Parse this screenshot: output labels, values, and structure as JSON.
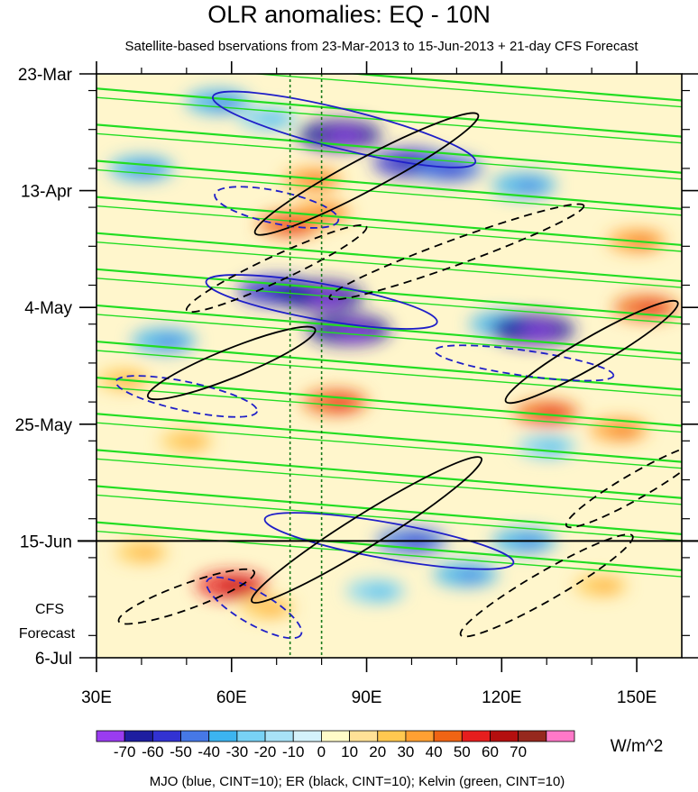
{
  "chart_data": {
    "type": "heatmap",
    "title": "OLR anomalies: EQ - 10N",
    "subtitle": "Satellite-based bservations from 23-Mar-2013 to 15-Jun-2013 + 21-day CFS Forecast",
    "x_axis": {
      "label": "",
      "range": [
        30,
        160
      ],
      "ticks": [
        {
          "value": 30,
          "label": "30E"
        },
        {
          "value": 60,
          "label": "60E"
        },
        {
          "value": 90,
          "label": "90E"
        },
        {
          "value": 120,
          "label": "120E"
        },
        {
          "value": 150,
          "label": "150E"
        }
      ]
    },
    "y_axis": {
      "label": "",
      "range_days": [
        0,
        105
      ],
      "ticks": [
        {
          "day": 0,
          "label": "23-Mar"
        },
        {
          "day": 21,
          "label": "13-Apr"
        },
        {
          "day": 42,
          "label": "4-May"
        },
        {
          "day": 63,
          "label": "25-May"
        },
        {
          "day": 84,
          "label": "15-Jun"
        },
        {
          "day": 105,
          "label": "6-Jul"
        }
      ]
    },
    "forecast_start_day": 84,
    "forecast_label_line1": "CFS",
    "forecast_label_line2": "Forecast",
    "reference_longitudes": [
      73,
      80
    ],
    "colorbar": {
      "units": "W/m^2",
      "levels": [
        -70,
        -60,
        -50,
        -40,
        -30,
        -20,
        -10,
        0,
        10,
        20,
        30,
        40,
        50,
        60,
        70
      ],
      "level_labels": [
        "-70",
        "-60",
        "-50",
        "-40",
        "-30",
        "-20",
        "-10",
        "0",
        "10",
        "20",
        "30",
        "40",
        "50",
        "60",
        "70"
      ],
      "colors": [
        "#9a3cf0",
        "#1e1ea0",
        "#3232d2",
        "#4678e6",
        "#3cb4f0",
        "#78d2f5",
        "#a8e2f7",
        "#d4f2fb",
        "#fffbc8",
        "#ffe196",
        "#ffc850",
        "#ffa032",
        "#f06414",
        "#e61e1e",
        "#b40f0f",
        "#96281e",
        "#ff78c8"
      ]
    },
    "contour_legend": "MJO (blue, CINT=10); ER (black, CINT=10); Kelvin (green, CINT=10)",
    "contour_series": [
      {
        "name": "MJO",
        "color": "#1f1fc8",
        "cint": 10
      },
      {
        "name": "ER",
        "color": "#000000",
        "cint": 10
      },
      {
        "name": "Kelvin",
        "color": "#22dd22",
        "cint": 10
      }
    ],
    "anomaly_features": [
      {
        "lon": 57,
        "day": 5,
        "value": -40
      },
      {
        "lon": 68,
        "day": 8,
        "value": -30
      },
      {
        "lon": 84,
        "day": 11,
        "value": -70
      },
      {
        "lon": 100,
        "day": 16,
        "value": -60
      },
      {
        "lon": 108,
        "day": 17,
        "value": -50
      },
      {
        "lon": 40,
        "day": 17,
        "value": -40
      },
      {
        "lon": 125,
        "day": 20,
        "value": -40
      },
      {
        "lon": 78,
        "day": 19,
        "value": 30
      },
      {
        "lon": 73,
        "day": 27,
        "value": 40
      },
      {
        "lon": 80,
        "day": 25,
        "value": 30
      },
      {
        "lon": 150,
        "day": 30,
        "value": 30
      },
      {
        "lon": 70,
        "day": 39,
        "value": -60
      },
      {
        "lon": 80,
        "day": 40,
        "value": -70
      },
      {
        "lon": 86,
        "day": 46,
        "value": -70
      },
      {
        "lon": 120,
        "day": 45,
        "value": -40
      },
      {
        "lon": 127,
        "day": 46,
        "value": -70
      },
      {
        "lon": 152,
        "day": 42,
        "value": 40
      },
      {
        "lon": 45,
        "day": 48,
        "value": -40
      },
      {
        "lon": 36,
        "day": 55,
        "value": 20
      },
      {
        "lon": 83,
        "day": 59,
        "value": 40
      },
      {
        "lon": 130,
        "day": 61,
        "value": 40
      },
      {
        "lon": 146,
        "day": 64,
        "value": 30
      },
      {
        "lon": 50,
        "day": 66,
        "value": 20
      },
      {
        "lon": 130,
        "day": 67,
        "value": -30
      },
      {
        "lon": 100,
        "day": 84,
        "value": -50
      },
      {
        "lon": 125,
        "day": 84,
        "value": -40
      },
      {
        "lon": 40,
        "day": 86,
        "value": 20
      },
      {
        "lon": 60,
        "day": 92,
        "value": 50
      },
      {
        "lon": 68,
        "day": 96,
        "value": 20
      },
      {
        "lon": 92,
        "day": 93,
        "value": -30
      },
      {
        "lon": 112,
        "day": 90,
        "value": -40
      },
      {
        "lon": 142,
        "day": 92,
        "value": 20
      }
    ]
  }
}
